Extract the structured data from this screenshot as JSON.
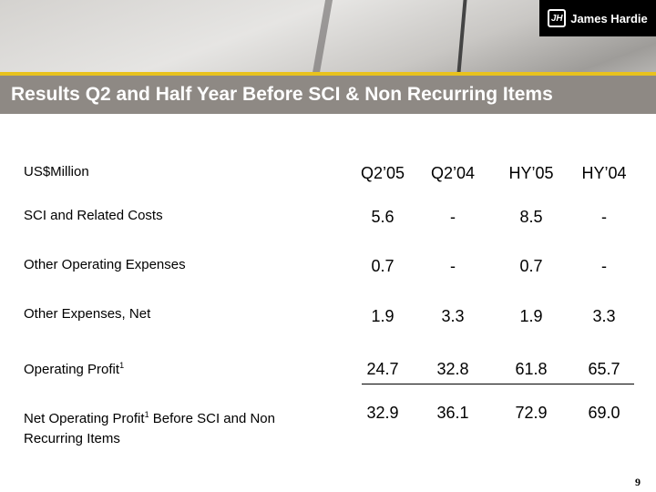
{
  "header": {
    "title": "Results Q2 and Half Year Before SCI & Non Recurring Items",
    "logo_text": "James Hardie",
    "logo_mark": "JH"
  },
  "table": {
    "unit_label": "US$Million",
    "columns": [
      "Q2’05",
      "Q2’04",
      "HY’05",
      "HY’04"
    ],
    "rows": [
      {
        "label": "SCI and Related Costs",
        "values": [
          "5.6",
          "-",
          "8.5",
          "-"
        ]
      },
      {
        "label": "Other Operating Expenses",
        "values": [
          "0.7",
          "-",
          "0.7",
          "-"
        ]
      },
      {
        "label": "Other Expenses, Net",
        "values": [
          "1.9",
          "3.3",
          "1.9",
          "3.3"
        ]
      },
      {
        "label": "Operating Profit",
        "sup": "1",
        "values": [
          "24.7",
          "32.8",
          "61.8",
          "65.7"
        ]
      },
      {
        "label": "Net Operating Profit",
        "sup": "1",
        "label_rest": " Before SCI and Non Recurring Items",
        "values": [
          "32.9",
          "36.1",
          "72.9",
          "69.0"
        ]
      }
    ]
  },
  "page_number": "9"
}
